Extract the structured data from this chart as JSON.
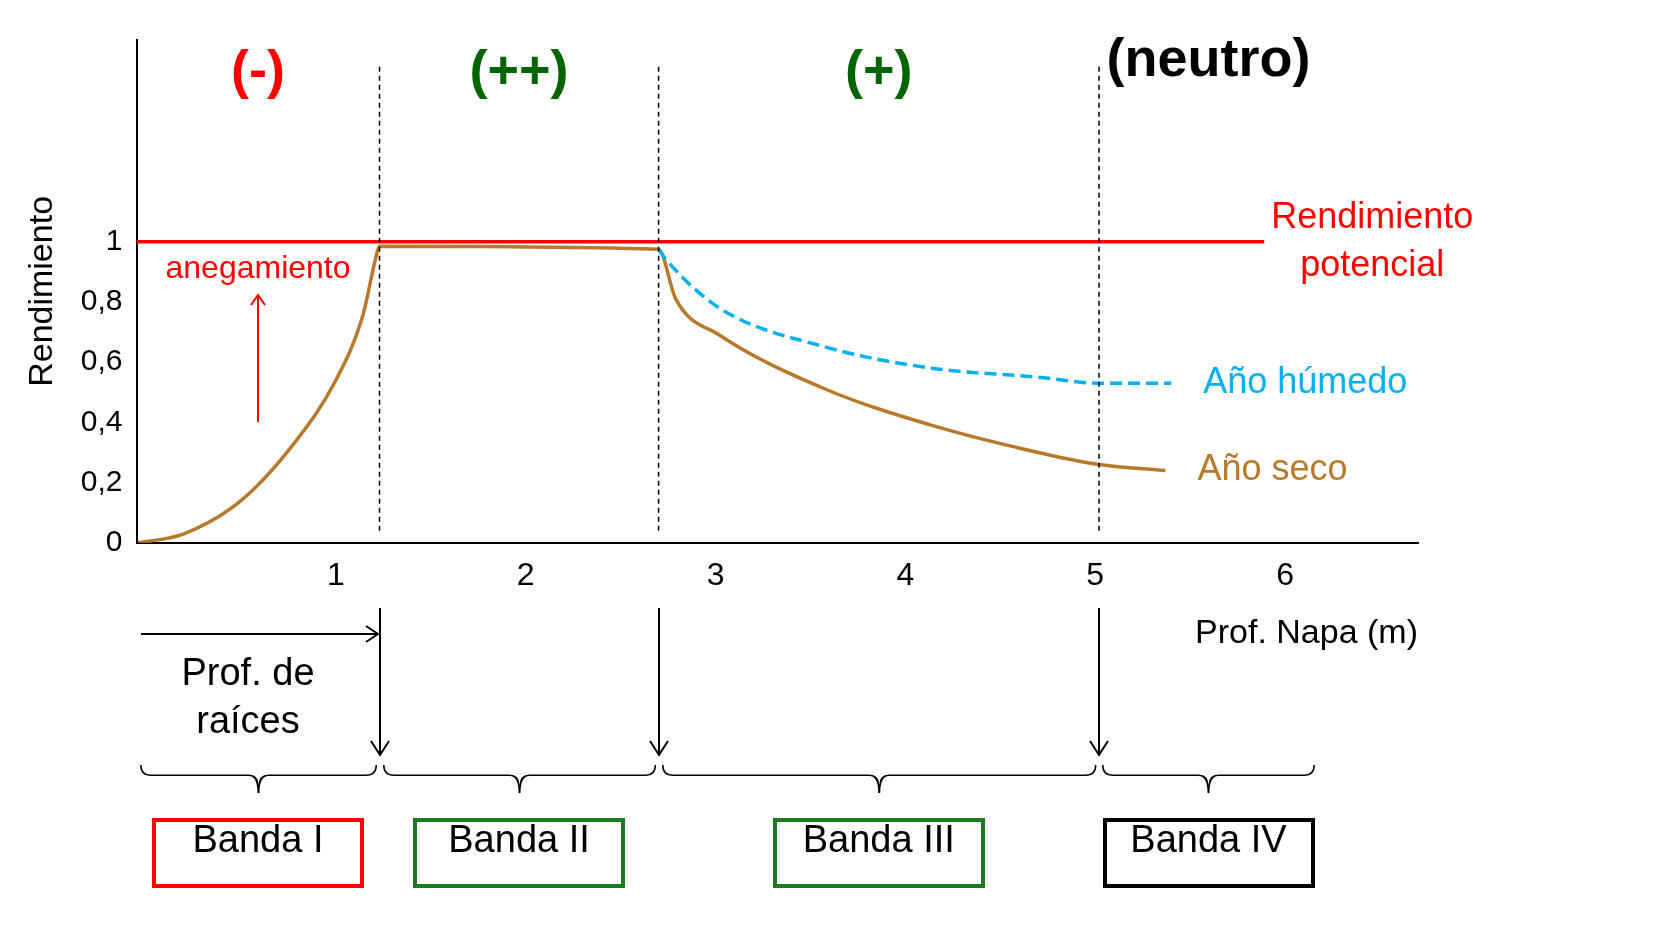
{
  "chart_data": {
    "type": "line",
    "xlabel": "Prof. Napa (m)",
    "ylabel": "Rendimiento",
    "xlim": [
      -0.05,
      6.7
    ],
    "ylim": [
      0,
      1.67
    ],
    "xticks": [
      1,
      2,
      3,
      4,
      5,
      6
    ],
    "yticks": [
      0,
      {
        "value": 0.2,
        "label": "0,2"
      },
      {
        "value": 0.4,
        "label": "0,4"
      },
      {
        "value": 0.6,
        "label": "0,6"
      },
      {
        "value": 0.8,
        "label": "0,8"
      },
      1
    ],
    "series": [
      {
        "name": "Rendimiento potencial",
        "color": "#ff0000",
        "x": [
          -0.05,
          5.89
        ],
        "values": [
          1,
          1
        ]
      },
      {
        "name": "Año húmedo",
        "color": "#00b0f0",
        "line_style": "dashed",
        "x": [
          2.7,
          2.74,
          3.02,
          3.58,
          4.14,
          4.7,
          5.02,
          5.4
        ],
        "values": [
          0.975,
          0.94,
          0.78,
          0.65,
          0.58,
          0.55,
          0.53,
          0.53
        ]
      },
      {
        "name": "Año seco",
        "color": "#b87a2a",
        "x": [
          -0.04,
          0.2,
          0.5,
          0.78,
          1.0,
          1.14,
          1.22,
          1.23,
          2.7,
          2.79,
          3.02,
          3.58,
          4.14,
          4.7,
          5.02,
          5.37
        ],
        "values": [
          0,
          0.03,
          0.14,
          0.33,
          0.54,
          0.75,
          0.97,
          0.985,
          0.975,
          0.81,
          0.69,
          0.51,
          0.39,
          0.3,
          0.26,
          0.24
        ]
      }
    ],
    "ref_lines": [
      {
        "axis": "x",
        "value": 1.23,
        "color": "#000000",
        "line_style": "dashed"
      },
      {
        "axis": "x",
        "value": 2.7,
        "color": "#000000",
        "line_style": "dashed"
      },
      {
        "axis": "x",
        "value": 5.02,
        "color": "#000000",
        "line_style": "dashed"
      }
    ],
    "annotations": [
      "(-)",
      "(++)",
      "(+)",
      "(neutro)",
      "anegamiento",
      "Prof. de raíces",
      "Banda I",
      "Banda II",
      "Banda III",
      "Banda IV"
    ],
    "marker": "none",
    "grid": false,
    "legend": false
  }
}
